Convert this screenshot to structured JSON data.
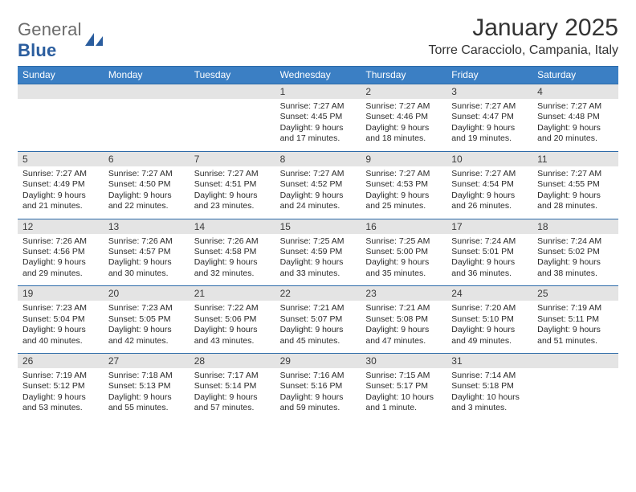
{
  "logo": {
    "text1": "General",
    "text2": "Blue"
  },
  "title": "January 2025",
  "location": "Torre Caracciolo, Campania, Italy",
  "colors": {
    "header_bar": "#3b7fc4",
    "rule": "#2c6aa8",
    "daynum_bg": "#e4e4e4",
    "logo_gray": "#6b6b6b",
    "logo_blue": "#2a5d9e"
  },
  "weekdays": [
    "Sunday",
    "Monday",
    "Tuesday",
    "Wednesday",
    "Thursday",
    "Friday",
    "Saturday"
  ],
  "weeks": [
    {
      "nums": [
        "",
        "",
        "",
        "1",
        "2",
        "3",
        "4"
      ],
      "cells": [
        null,
        null,
        null,
        {
          "sr": "Sunrise: 7:27 AM",
          "ss": "Sunset: 4:45 PM",
          "d1": "Daylight: 9 hours",
          "d2": "and 17 minutes."
        },
        {
          "sr": "Sunrise: 7:27 AM",
          "ss": "Sunset: 4:46 PM",
          "d1": "Daylight: 9 hours",
          "d2": "and 18 minutes."
        },
        {
          "sr": "Sunrise: 7:27 AM",
          "ss": "Sunset: 4:47 PM",
          "d1": "Daylight: 9 hours",
          "d2": "and 19 minutes."
        },
        {
          "sr": "Sunrise: 7:27 AM",
          "ss": "Sunset: 4:48 PM",
          "d1": "Daylight: 9 hours",
          "d2": "and 20 minutes."
        }
      ]
    },
    {
      "nums": [
        "5",
        "6",
        "7",
        "8",
        "9",
        "10",
        "11"
      ],
      "cells": [
        {
          "sr": "Sunrise: 7:27 AM",
          "ss": "Sunset: 4:49 PM",
          "d1": "Daylight: 9 hours",
          "d2": "and 21 minutes."
        },
        {
          "sr": "Sunrise: 7:27 AM",
          "ss": "Sunset: 4:50 PM",
          "d1": "Daylight: 9 hours",
          "d2": "and 22 minutes."
        },
        {
          "sr": "Sunrise: 7:27 AM",
          "ss": "Sunset: 4:51 PM",
          "d1": "Daylight: 9 hours",
          "d2": "and 23 minutes."
        },
        {
          "sr": "Sunrise: 7:27 AM",
          "ss": "Sunset: 4:52 PM",
          "d1": "Daylight: 9 hours",
          "d2": "and 24 minutes."
        },
        {
          "sr": "Sunrise: 7:27 AM",
          "ss": "Sunset: 4:53 PM",
          "d1": "Daylight: 9 hours",
          "d2": "and 25 minutes."
        },
        {
          "sr": "Sunrise: 7:27 AM",
          "ss": "Sunset: 4:54 PM",
          "d1": "Daylight: 9 hours",
          "d2": "and 26 minutes."
        },
        {
          "sr": "Sunrise: 7:27 AM",
          "ss": "Sunset: 4:55 PM",
          "d1": "Daylight: 9 hours",
          "d2": "and 28 minutes."
        }
      ]
    },
    {
      "nums": [
        "12",
        "13",
        "14",
        "15",
        "16",
        "17",
        "18"
      ],
      "cells": [
        {
          "sr": "Sunrise: 7:26 AM",
          "ss": "Sunset: 4:56 PM",
          "d1": "Daylight: 9 hours",
          "d2": "and 29 minutes."
        },
        {
          "sr": "Sunrise: 7:26 AM",
          "ss": "Sunset: 4:57 PM",
          "d1": "Daylight: 9 hours",
          "d2": "and 30 minutes."
        },
        {
          "sr": "Sunrise: 7:26 AM",
          "ss": "Sunset: 4:58 PM",
          "d1": "Daylight: 9 hours",
          "d2": "and 32 minutes."
        },
        {
          "sr": "Sunrise: 7:25 AM",
          "ss": "Sunset: 4:59 PM",
          "d1": "Daylight: 9 hours",
          "d2": "and 33 minutes."
        },
        {
          "sr": "Sunrise: 7:25 AM",
          "ss": "Sunset: 5:00 PM",
          "d1": "Daylight: 9 hours",
          "d2": "and 35 minutes."
        },
        {
          "sr": "Sunrise: 7:24 AM",
          "ss": "Sunset: 5:01 PM",
          "d1": "Daylight: 9 hours",
          "d2": "and 36 minutes."
        },
        {
          "sr": "Sunrise: 7:24 AM",
          "ss": "Sunset: 5:02 PM",
          "d1": "Daylight: 9 hours",
          "d2": "and 38 minutes."
        }
      ]
    },
    {
      "nums": [
        "19",
        "20",
        "21",
        "22",
        "23",
        "24",
        "25"
      ],
      "cells": [
        {
          "sr": "Sunrise: 7:23 AM",
          "ss": "Sunset: 5:04 PM",
          "d1": "Daylight: 9 hours",
          "d2": "and 40 minutes."
        },
        {
          "sr": "Sunrise: 7:23 AM",
          "ss": "Sunset: 5:05 PM",
          "d1": "Daylight: 9 hours",
          "d2": "and 42 minutes."
        },
        {
          "sr": "Sunrise: 7:22 AM",
          "ss": "Sunset: 5:06 PM",
          "d1": "Daylight: 9 hours",
          "d2": "and 43 minutes."
        },
        {
          "sr": "Sunrise: 7:21 AM",
          "ss": "Sunset: 5:07 PM",
          "d1": "Daylight: 9 hours",
          "d2": "and 45 minutes."
        },
        {
          "sr": "Sunrise: 7:21 AM",
          "ss": "Sunset: 5:08 PM",
          "d1": "Daylight: 9 hours",
          "d2": "and 47 minutes."
        },
        {
          "sr": "Sunrise: 7:20 AM",
          "ss": "Sunset: 5:10 PM",
          "d1": "Daylight: 9 hours",
          "d2": "and 49 minutes."
        },
        {
          "sr": "Sunrise: 7:19 AM",
          "ss": "Sunset: 5:11 PM",
          "d1": "Daylight: 9 hours",
          "d2": "and 51 minutes."
        }
      ]
    },
    {
      "nums": [
        "26",
        "27",
        "28",
        "29",
        "30",
        "31",
        ""
      ],
      "cells": [
        {
          "sr": "Sunrise: 7:19 AM",
          "ss": "Sunset: 5:12 PM",
          "d1": "Daylight: 9 hours",
          "d2": "and 53 minutes."
        },
        {
          "sr": "Sunrise: 7:18 AM",
          "ss": "Sunset: 5:13 PM",
          "d1": "Daylight: 9 hours",
          "d2": "and 55 minutes."
        },
        {
          "sr": "Sunrise: 7:17 AM",
          "ss": "Sunset: 5:14 PM",
          "d1": "Daylight: 9 hours",
          "d2": "and 57 minutes."
        },
        {
          "sr": "Sunrise: 7:16 AM",
          "ss": "Sunset: 5:16 PM",
          "d1": "Daylight: 9 hours",
          "d2": "and 59 minutes."
        },
        {
          "sr": "Sunrise: 7:15 AM",
          "ss": "Sunset: 5:17 PM",
          "d1": "Daylight: 10 hours",
          "d2": "and 1 minute."
        },
        {
          "sr": "Sunrise: 7:14 AM",
          "ss": "Sunset: 5:18 PM",
          "d1": "Daylight: 10 hours",
          "d2": "and 3 minutes."
        },
        null
      ]
    }
  ]
}
